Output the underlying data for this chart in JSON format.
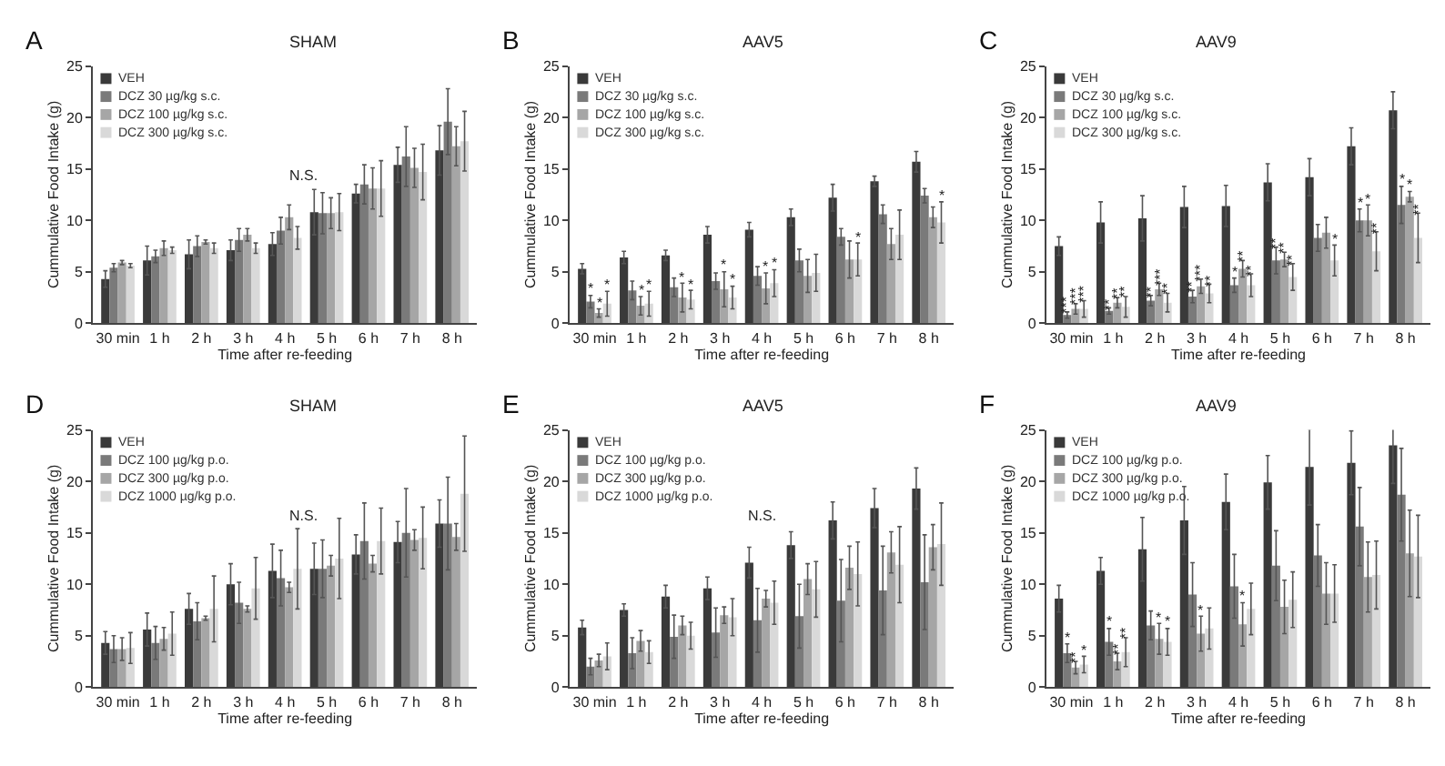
{
  "chart_data": [
    {
      "type": "bar",
      "title": "SHAM",
      "xlabel": "Time after re-feeding",
      "ylabel": "Cummulative Food Intake (g)",
      "annotations": [
        "A",
        "N.S."
      ],
      "categories": [
        "30 min",
        "1 h",
        "2 h",
        "3 h",
        "4 h",
        "5 h",
        "6 h",
        "7 h",
        "8 h"
      ],
      "ylim": [
        0,
        25
      ],
      "yticks": [
        0,
        5,
        10,
        15,
        20,
        25
      ],
      "legend": "top left",
      "grid": false,
      "series": [
        {
          "name": "VEH",
          "color": "#3a3a3a",
          "values": [
            4.3,
            6.1,
            6.7,
            7.1,
            7.7,
            10.8,
            12.6,
            15.4,
            16.8
          ],
          "errors": [
            0.8,
            1.4,
            1.4,
            1.0,
            1.1,
            2.2,
            0.9,
            1.7,
            2.4
          ]
        },
        {
          "name": "DCZ 30 µg/kg s.c.",
          "color": "#7a7a7a",
          "values": [
            5.4,
            6.5,
            7.5,
            8.1,
            9.0,
            10.7,
            13.5,
            16.2,
            19.6
          ],
          "errors": [
            0.4,
            0.6,
            1.0,
            1.1,
            1.3,
            2.0,
            1.9,
            2.9,
            3.2
          ]
        },
        {
          "name": "DCZ 100 µg/kg s.c.",
          "color": "#a6a6a6",
          "values": [
            5.9,
            7.3,
            7.9,
            8.6,
            10.3,
            10.7,
            13.1,
            15.1,
            17.2
          ],
          "errors": [
            0.2,
            0.7,
            0.2,
            0.6,
            1.2,
            1.5,
            2.0,
            1.9,
            1.9
          ]
        },
        {
          "name": "DCZ 300 µg/kg s.c.",
          "color": "#d9d9d9",
          "values": [
            5.6,
            7.1,
            7.3,
            7.3,
            8.3,
            10.8,
            13.1,
            14.7,
            17.7
          ],
          "errors": [
            0.2,
            0.3,
            0.5,
            0.5,
            1.1,
            1.8,
            2.7,
            2.7,
            2.9
          ]
        }
      ]
    },
    {
      "type": "bar",
      "title": "AAV5",
      "xlabel": "Time after re-feeding",
      "ylabel": "Cummulative Food Intake (g)",
      "annotations": [
        "B"
      ],
      "categories": [
        "30 min",
        "1 h",
        "2 h",
        "3 h",
        "4 h",
        "5 h",
        "6 h",
        "7 h",
        "8 h"
      ],
      "ylim": [
        0,
        25
      ],
      "yticks": [
        0,
        5,
        10,
        15,
        20,
        25
      ],
      "legend": "top left",
      "grid": false,
      "series": [
        {
          "name": "VEH",
          "color": "#3a3a3a",
          "values": [
            5.3,
            6.4,
            6.6,
            8.6,
            9.1,
            10.3,
            12.2,
            13.8,
            15.7
          ],
          "errors": [
            0.5,
            0.6,
            0.5,
            0.8,
            0.7,
            0.8,
            1.3,
            0.5,
            1.0
          ]
        },
        {
          "name": "DCZ 30 µg/kg s.c.",
          "color": "#7a7a7a",
          "values": [
            2.1,
            3.2,
            3.5,
            4.1,
            4.6,
            6.1,
            8.4,
            10.6,
            12.4
          ],
          "errors": [
            0.6,
            0.9,
            0.9,
            0.8,
            0.9,
            1.1,
            0.8,
            0.9,
            0.7
          ],
          "value_labels": [
            "*",
            null,
            null,
            null,
            null,
            null,
            null,
            null,
            null
          ]
        },
        {
          "name": "DCZ 100 µg/kg s.c.",
          "color": "#a6a6a6",
          "values": [
            1.0,
            1.7,
            2.5,
            3.3,
            3.4,
            4.6,
            6.2,
            7.7,
            10.3
          ],
          "errors": [
            0.4,
            0.9,
            1.4,
            1.7,
            1.5,
            1.6,
            1.8,
            1.5,
            1.0
          ],
          "value_labels": [
            "*",
            "*",
            "*",
            "*",
            "*",
            null,
            null,
            null,
            null
          ]
        },
        {
          "name": "DCZ 300 µg/kg s.c.",
          "color": "#d9d9d9",
          "values": [
            1.9,
            1.9,
            2.3,
            2.5,
            3.9,
            4.9,
            6.2,
            8.6,
            9.8
          ],
          "errors": [
            1.2,
            1.2,
            0.9,
            1.1,
            1.3,
            1.8,
            1.6,
            2.4,
            2.0
          ],
          "value_labels": [
            "*",
            "*",
            "*",
            "*",
            "*",
            null,
            "*",
            null,
            "*"
          ]
        }
      ]
    },
    {
      "type": "bar",
      "title": "AAV9",
      "xlabel": "Time after re-feeding",
      "ylabel": "Cummulative Food Intake (g)",
      "annotations": [
        "C"
      ],
      "categories": [
        "30 min",
        "1 h",
        "2 h",
        "3 h",
        "4 h",
        "5 h",
        "6 h",
        "7 h",
        "8 h"
      ],
      "ylim": [
        0,
        25
      ],
      "yticks": [
        0,
        5,
        10,
        15,
        20,
        25
      ],
      "legend": "top left",
      "grid": false,
      "series": [
        {
          "name": "VEH",
          "color": "#3a3a3a",
          "values": [
            7.5,
            9.8,
            10.2,
            11.3,
            11.4,
            13.7,
            14.2,
            17.2,
            20.7
          ],
          "errors": [
            0.9,
            2.0,
            2.2,
            2.0,
            2.0,
            1.8,
            1.8,
            1.8,
            1.8
          ]
        },
        {
          "name": "DCZ 30 µg/kg s.c.",
          "color": "#7a7a7a",
          "values": [
            0.8,
            1.2,
            2.2,
            2.6,
            3.7,
            6.1,
            8.3,
            10.0,
            11.5
          ],
          "errors": [
            0.3,
            0.3,
            0.5,
            0.6,
            0.7,
            1.3,
            1.3,
            1.1,
            1.8
          ],
          "value_labels": [
            "***",
            "**",
            "**",
            "**",
            "*",
            "**",
            null,
            "*",
            "*"
          ]
        },
        {
          "name": "DCZ 100 µg/kg s.c.",
          "color": "#a6a6a6",
          "values": [
            1.4,
            2.0,
            3.3,
            3.6,
            5.3,
            6.2,
            8.8,
            10.0,
            12.3
          ],
          "errors": [
            0.5,
            0.5,
            0.6,
            0.7,
            0.8,
            0.7,
            1.5,
            1.5,
            0.5
          ],
          "value_labels": [
            "***",
            "**",
            "***",
            "***",
            "**",
            "**",
            null,
            "*",
            "*"
          ]
        },
        {
          "name": "DCZ 300 µg/kg s.c.",
          "color": "#d9d9d9",
          "values": [
            1.4,
            1.6,
            2.0,
            2.9,
            3.7,
            4.5,
            6.1,
            7.0,
            8.3
          ],
          "errors": [
            0.8,
            1.0,
            0.9,
            0.9,
            1.1,
            1.3,
            1.5,
            1.9,
            2.4
          ],
          "value_labels": [
            "***",
            "**",
            "**",
            "**",
            "**",
            "**",
            "*",
            "**",
            "**"
          ]
        }
      ]
    },
    {
      "type": "bar",
      "title": "SHAM",
      "xlabel": "Time after re-feeding",
      "ylabel": "Cummulative Food Intake (g)",
      "annotations": [
        "D",
        "N.S."
      ],
      "categories": [
        "30 min",
        "1 h",
        "2 h",
        "3 h",
        "4 h",
        "5 h",
        "6 h",
        "7 h",
        "8 h"
      ],
      "ylim": [
        0,
        25
      ],
      "yticks": [
        0,
        5,
        10,
        15,
        20,
        25
      ],
      "legend": "top left",
      "grid": false,
      "series": [
        {
          "name": "VEH",
          "color": "#3a3a3a",
          "values": [
            4.3,
            5.6,
            7.6,
            10.0,
            11.3,
            11.5,
            12.9,
            14.1,
            15.9
          ],
          "errors": [
            1.1,
            1.6,
            1.5,
            2.0,
            2.6,
            2.5,
            1.9,
            2.0,
            2.3
          ]
        },
        {
          "name": "DCZ 100 µg/kg p.o.",
          "color": "#7a7a7a",
          "values": [
            3.7,
            4.3,
            6.4,
            8.2,
            10.6,
            11.5,
            14.2,
            15.0,
            15.9
          ],
          "errors": [
            1.3,
            1.6,
            1.8,
            2.0,
            2.7,
            2.8,
            3.7,
            4.3,
            4.5
          ]
        },
        {
          "name": "DCZ 300 µg/kg p.o.",
          "color": "#a6a6a6",
          "values": [
            3.7,
            4.7,
            6.7,
            7.6,
            9.7,
            11.8,
            12.0,
            14.3,
            14.6
          ],
          "errors": [
            1.1,
            1.1,
            0.2,
            0.3,
            0.5,
            1.0,
            0.8,
            1.0,
            1.3
          ]
        },
        {
          "name": "DCZ 1000 µg/kg p.o.",
          "color": "#d9d9d9",
          "values": [
            3.8,
            5.2,
            7.6,
            9.6,
            11.5,
            12.5,
            14.2,
            14.5,
            18.8
          ],
          "errors": [
            1.5,
            2.1,
            3.2,
            3.0,
            3.9,
            3.9,
            3.2,
            3.0,
            5.6
          ]
        }
      ]
    },
    {
      "type": "bar",
      "title": "AAV5",
      "xlabel": "Time after re-feeding",
      "ylabel": "Cummulative Food Intake (g)",
      "annotations": [
        "E",
        "N.S."
      ],
      "categories": [
        "30 min",
        "1 h",
        "2 h",
        "3 h",
        "4 h",
        "5 h",
        "6 h",
        "7 h",
        "8 h"
      ],
      "ylim": [
        0,
        25
      ],
      "yticks": [
        0,
        5,
        10,
        15,
        20,
        25
      ],
      "legend": "top left",
      "grid": false,
      "series": [
        {
          "name": "VEH",
          "color": "#3a3a3a",
          "values": [
            5.8,
            7.5,
            8.8,
            9.6,
            12.1,
            13.8,
            16.2,
            17.4,
            19.3
          ],
          "errors": [
            0.7,
            0.6,
            1.1,
            1.1,
            1.5,
            1.3,
            1.8,
            1.9,
            2.0
          ]
        },
        {
          "name": "DCZ 100 µg/kg p.o.",
          "color": "#7a7a7a",
          "values": [
            2.0,
            3.3,
            4.9,
            5.3,
            6.5,
            6.9,
            8.4,
            9.4,
            10.2
          ],
          "errors": [
            0.8,
            1.5,
            2.1,
            2.4,
            3.1,
            3.1,
            4.0,
            4.3,
            4.6
          ]
        },
        {
          "name": "DCZ 300 µg/kg p.o.",
          "color": "#a6a6a6",
          "values": [
            2.6,
            4.5,
            6.0,
            7.0,
            8.6,
            10.5,
            11.6,
            13.1,
            13.6
          ],
          "errors": [
            0.6,
            1.0,
            0.9,
            0.8,
            0.8,
            1.5,
            2.1,
            2.0,
            2.2
          ]
        },
        {
          "name": "DCZ 1000 µg/kg p.o.",
          "color": "#d9d9d9",
          "values": [
            3.0,
            3.4,
            5.0,
            6.8,
            8.2,
            9.5,
            11.0,
            11.9,
            13.9
          ],
          "errors": [
            1.3,
            1.1,
            1.3,
            1.8,
            2.1,
            2.7,
            3.1,
            3.7,
            4.0
          ]
        }
      ]
    },
    {
      "type": "bar",
      "title": "AAV9",
      "xlabel": "Time after re-feeding",
      "ylabel": "Cummulative Food Intake (g)",
      "annotations": [
        "F"
      ],
      "categories": [
        "30 min",
        "1 h",
        "2 h",
        "3 h",
        "4 h",
        "5 h",
        "6 h",
        "7 h",
        "8 h"
      ],
      "ylim": [
        0,
        25
      ],
      "yticks": [
        0,
        5,
        10,
        15,
        20,
        25
      ],
      "legend": "top left",
      "grid": false,
      "series": [
        {
          "name": "VEH",
          "color": "#3a3a3a",
          "values": [
            8.6,
            11.3,
            13.4,
            16.2,
            18.0,
            19.9,
            21.4,
            21.8,
            23.5
          ],
          "errors": [
            1.3,
            1.3,
            3.1,
            3.3,
            2.7,
            2.6,
            3.7,
            3.1,
            3.7
          ]
        },
        {
          "name": "DCZ 100 µg/kg p.o.",
          "color": "#7a7a7a",
          "values": [
            3.3,
            4.4,
            6.0,
            9.0,
            9.8,
            11.8,
            12.8,
            15.6,
            18.7
          ],
          "errors": [
            0.9,
            1.3,
            1.4,
            3.1,
            3.1,
            3.4,
            3.0,
            3.8,
            4.5
          ],
          "value_labels": [
            "*",
            "*",
            null,
            null,
            null,
            null,
            null,
            null,
            null
          ]
        },
        {
          "name": "DCZ 300 µg/kg p.o.",
          "color": "#a6a6a6",
          "values": [
            1.9,
            2.5,
            4.7,
            5.2,
            6.1,
            7.8,
            9.1,
            10.7,
            13.0
          ],
          "errors": [
            0.6,
            0.8,
            1.5,
            1.7,
            2.1,
            2.6,
            3.0,
            3.4,
            4.2
          ],
          "value_labels": [
            "**",
            "**",
            "*",
            "*",
            "*",
            null,
            null,
            null,
            null
          ]
        },
        {
          "name": "DCZ 1000 µg/kg p.o.",
          "color": "#d9d9d9",
          "values": [
            2.2,
            3.4,
            4.4,
            5.7,
            7.6,
            8.5,
            9.1,
            10.9,
            12.7
          ],
          "errors": [
            0.8,
            1.4,
            1.3,
            2.0,
            2.5,
            2.7,
            2.8,
            3.3,
            4.0
          ],
          "value_labels": [
            "*",
            "**",
            "*",
            null,
            null,
            null,
            null,
            null,
            null
          ]
        }
      ]
    }
  ]
}
